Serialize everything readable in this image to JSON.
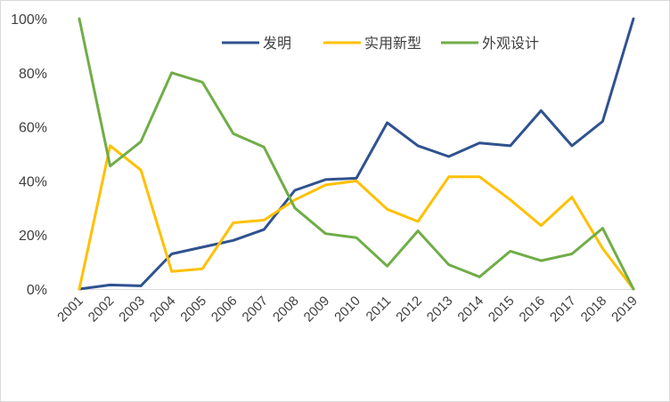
{
  "chart_data": {
    "type": "line",
    "x": [
      "2001",
      "2002",
      "2003",
      "2004",
      "2005",
      "2006",
      "2007",
      "2008",
      "2009",
      "2010",
      "2011",
      "2012",
      "2013",
      "2014",
      "2015",
      "2016",
      "2017",
      "2018",
      "2019"
    ],
    "ylim": [
      0,
      100
    ],
    "yticks": [
      "0%",
      "20%",
      "40%",
      "60%",
      "80%",
      "100%"
    ],
    "grid": false,
    "legend_position": "top",
    "series": [
      {
        "name": "发明",
        "color": "#2f528f",
        "values": [
          0,
          1.5,
          1.2,
          13,
          15.5,
          18,
          22,
          36.5,
          40.5,
          41,
          61.5,
          53,
          49,
          54,
          53,
          66,
          53,
          62,
          100
        ]
      },
      {
        "name": "实用新型",
        "color": "#ffc000",
        "values": [
          0,
          53,
          44,
          6.5,
          7.5,
          24.5,
          25.5,
          33,
          38.5,
          40,
          29.5,
          25,
          41.5,
          41.5,
          33,
          23.5,
          34,
          15,
          0
        ]
      },
      {
        "name": "外观设计",
        "color": "#70ad47",
        "values": [
          100,
          45.5,
          54.5,
          80,
          76.5,
          57.5,
          52.5,
          30,
          20.5,
          19,
          8.5,
          21.5,
          9,
          4.5,
          14,
          10.5,
          13,
          22.5,
          0
        ]
      }
    ]
  }
}
